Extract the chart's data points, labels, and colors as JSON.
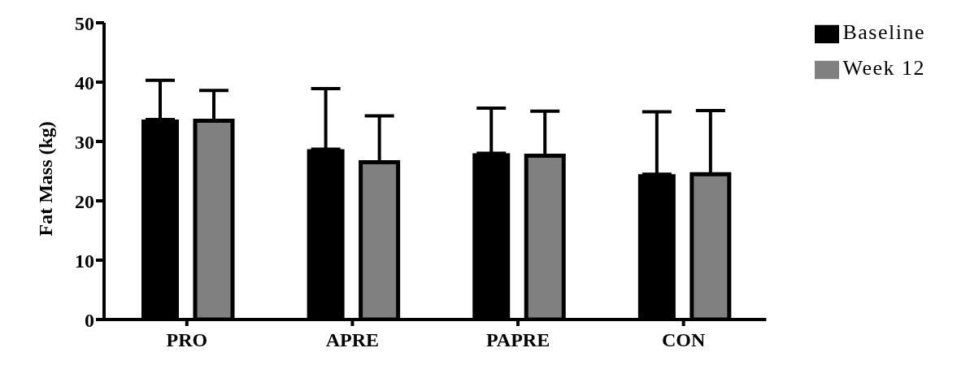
{
  "chart_data": {
    "type": "bar",
    "ylabel": "Fat Mass (kg)",
    "categories": [
      "PRO",
      "APRE",
      "PAPRE",
      "CON"
    ],
    "series": [
      {
        "name": "Baseline",
        "color": "#000000",
        "values": [
          33.7,
          28.7,
          28.0,
          24.5
        ],
        "errors": [
          [
            33.7,
            40.3
          ],
          [
            28.7,
            38.9
          ],
          [
            28.0,
            35.6
          ],
          [
            24.5,
            35.0
          ]
        ]
      },
      {
        "name": "Week 12",
        "color": "#808080",
        "values": [
          33.5,
          26.5,
          27.6,
          24.5
        ],
        "errors": [
          [
            33.5,
            38.6
          ],
          [
            26.5,
            34.3
          ],
          [
            27.6,
            35.1
          ],
          [
            24.5,
            35.2
          ]
        ]
      }
    ],
    "ylim": [
      0,
      50
    ],
    "yticks": [
      0,
      10,
      20,
      30,
      40,
      50
    ],
    "grid": false,
    "legend": "top right"
  }
}
